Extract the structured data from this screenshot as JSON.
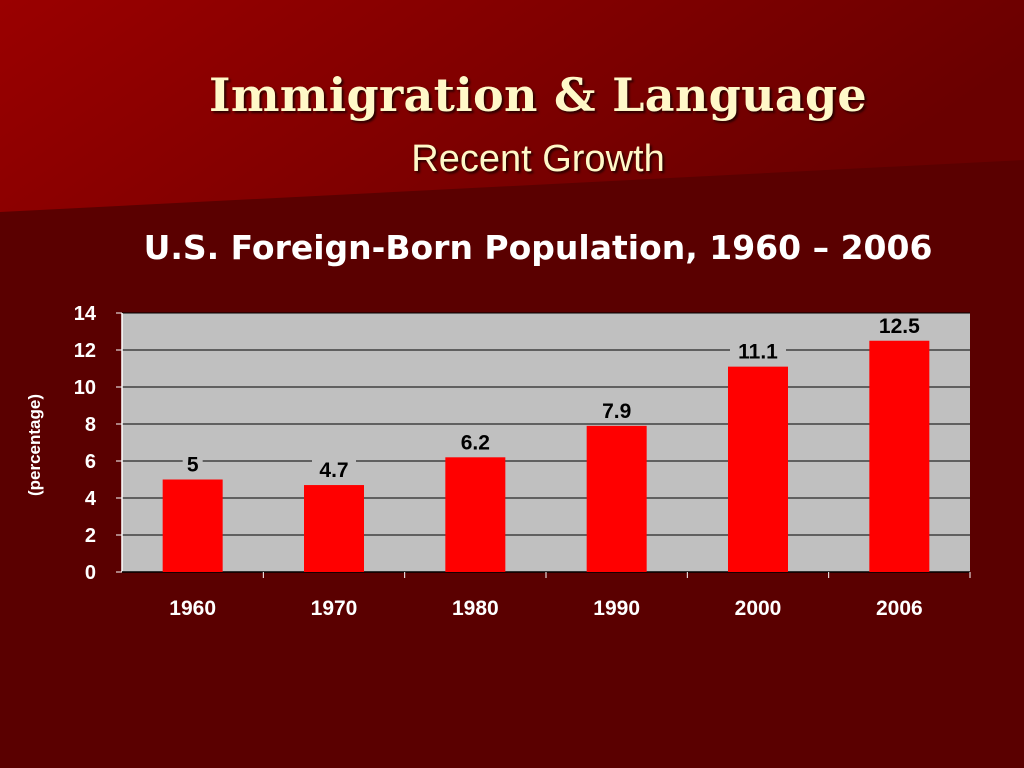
{
  "slide": {
    "title": "Immigration & Language",
    "subtitle": "Recent Growth"
  },
  "colors": {
    "background": "#5a0000",
    "wedge": "#8e0000",
    "plot_area": "#c0c0c0",
    "bar": "#ff0000",
    "title_text": "#fff8c8"
  },
  "chart_data": {
    "type": "bar",
    "title": "U.S. Foreign-Born Population, 1960 – 2006",
    "xlabel": "",
    "ylabel": "(percentage)",
    "categories": [
      "1960",
      "1970",
      "1980",
      "1990",
      "2000",
      "2006"
    ],
    "values": [
      5,
      4.7,
      6.2,
      7.9,
      11.1,
      12.5
    ],
    "data_labels": [
      "5",
      "4.7",
      "6.2",
      "7.9",
      "11.1",
      "12.5"
    ],
    "ylim": [
      0,
      14
    ],
    "yticks": [
      0,
      2,
      4,
      6,
      8,
      10,
      12,
      14
    ],
    "grid": true,
    "legend": "none"
  }
}
